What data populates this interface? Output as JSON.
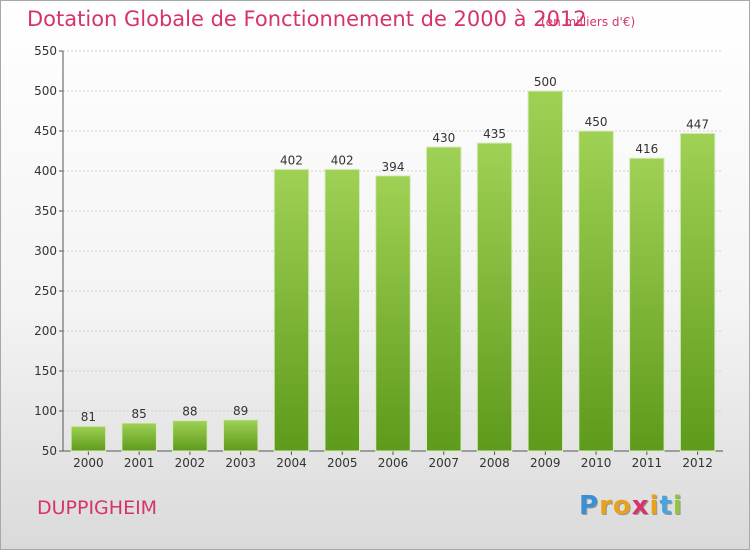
{
  "title": "Dotation Globale de Fonctionnement de 2000 à 2012",
  "subtitle": "(en milliers d'€)",
  "commune": "DUPPIGHEIM",
  "logo": {
    "text": "Proxiti",
    "letters": [
      "P",
      "r",
      "o",
      "x",
      "i",
      "t",
      "i"
    ],
    "colors": [
      "#3a8fd6",
      "#e8a11b",
      "#e8a11b",
      "#d6336c",
      "#e8a11b",
      "#4aa3df",
      "#8dc63f"
    ]
  },
  "colors": {
    "title": "#d6336c",
    "bar_top": "#9fd155",
    "bar_bottom": "#5e9a1c",
    "grid": "#d0d0d0",
    "axis": "#555555"
  },
  "chart_data": {
    "type": "bar",
    "title": "Dotation Globale de Fonctionnement de 2000 à 2012",
    "subtitle": "(en milliers d'€)",
    "categories": [
      "2000",
      "2001",
      "2002",
      "2003",
      "2004",
      "2005",
      "2006",
      "2007",
      "2008",
      "2009",
      "2010",
      "2011",
      "2012"
    ],
    "values": [
      81,
      85,
      88,
      89,
      402,
      402,
      394,
      430,
      435,
      500,
      450,
      416,
      447
    ],
    "ylim": [
      50,
      550
    ],
    "yticks": [
      50,
      100,
      150,
      200,
      250,
      300,
      350,
      400,
      450,
      500,
      550
    ],
    "grid": "horizontal"
  }
}
